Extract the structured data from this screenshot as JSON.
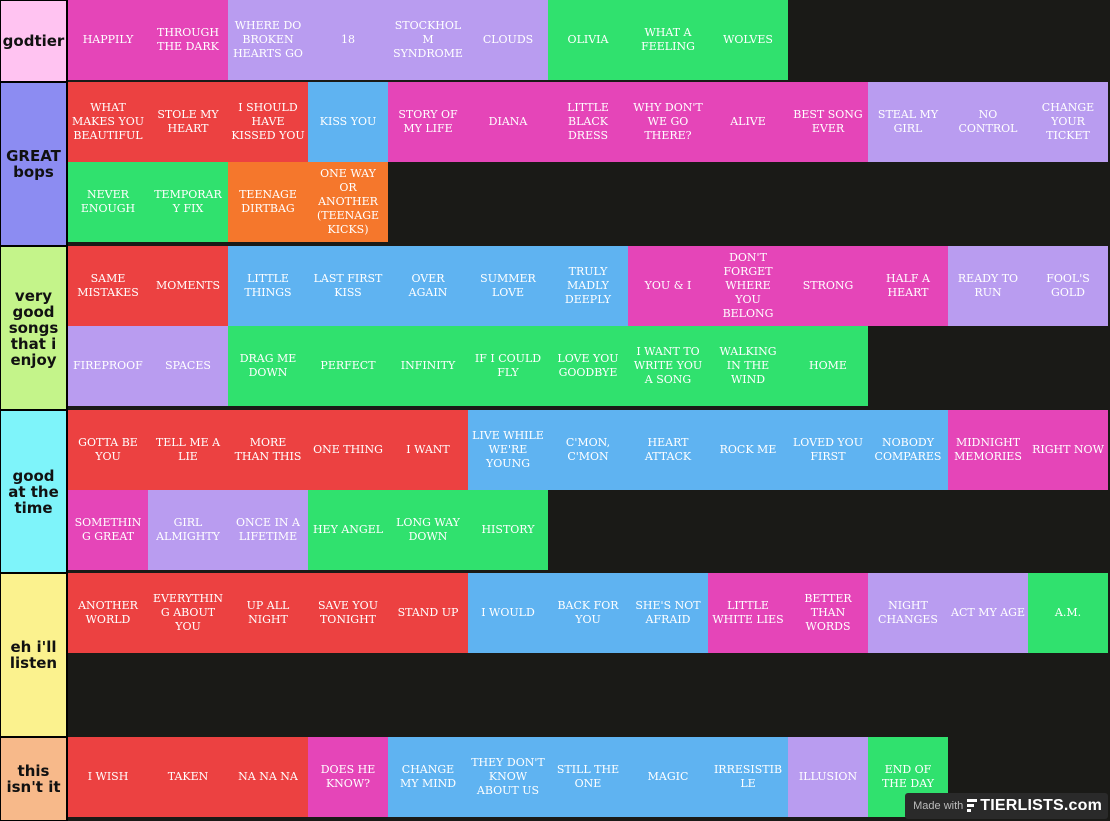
{
  "tiers": [
    {
      "label": "godtier",
      "color": "#ffc3f1",
      "items": [
        {
          "title": "HAPPILY",
          "color": "pink"
        },
        {
          "title": "THROUGH THE DARK",
          "color": "pink"
        },
        {
          "title": "WHERE DO BROKEN HEARTS GO",
          "color": "purple"
        },
        {
          "title": "18",
          "color": "purple"
        },
        {
          "title": "STOCKHOLM SYNDROME",
          "color": "purple"
        },
        {
          "title": "CLOUDS",
          "color": "purple"
        },
        {
          "title": "OLIVIA",
          "color": "green"
        },
        {
          "title": "WHAT A FEELING",
          "color": "green"
        },
        {
          "title": "WOLVES",
          "color": "green"
        }
      ]
    },
    {
      "label": "GREAT bops",
      "color": "#8c8cf2",
      "items": [
        {
          "title": "WHAT MAKES YOU BEAUTIFUL",
          "color": "red"
        },
        {
          "title": "STOLE MY HEART",
          "color": "red"
        },
        {
          "title": "I SHOULD HAVE KISSED YOU",
          "color": "red"
        },
        {
          "title": "KISS YOU",
          "color": "blue"
        },
        {
          "title": "STORY OF MY LIFE",
          "color": "pink"
        },
        {
          "title": "DIANA",
          "color": "pink"
        },
        {
          "title": "LITTLE BLACK DRESS",
          "color": "pink"
        },
        {
          "title": "WHY DON'T WE GO THERE?",
          "color": "pink"
        },
        {
          "title": "ALIVE",
          "color": "pink"
        },
        {
          "title": "BEST SONG EVER",
          "color": "pink"
        },
        {
          "title": "STEAL MY GIRL",
          "color": "purple"
        },
        {
          "title": "NO CONTROL",
          "color": "purple"
        },
        {
          "title": "CHANGE YOUR TICKET",
          "color": "purple"
        },
        {
          "title": "NEVER ENOUGH",
          "color": "green"
        },
        {
          "title": "TEMPORARY FIX",
          "color": "green"
        },
        {
          "title": "TEENAGE DIRTBAG",
          "color": "orange"
        },
        {
          "title": "ONE WAY OR ANOTHER (TEENAGE KICKS)",
          "color": "orange"
        }
      ]
    },
    {
      "label": "very good songs that i enjoy",
      "color": "#c4f48a",
      "items": [
        {
          "title": "SAME MISTAKES",
          "color": "red"
        },
        {
          "title": "MOMENTS",
          "color": "red"
        },
        {
          "title": "LITTLE THINGS",
          "color": "blue"
        },
        {
          "title": "LAST FIRST KISS",
          "color": "blue"
        },
        {
          "title": "OVER AGAIN",
          "color": "blue"
        },
        {
          "title": "SUMMER LOVE",
          "color": "blue"
        },
        {
          "title": "TRULY MADLY DEEPLY",
          "color": "blue"
        },
        {
          "title": "YOU & I",
          "color": "pink"
        },
        {
          "title": "DON'T FORGET WHERE YOU BELONG",
          "color": "pink"
        },
        {
          "title": "STRONG",
          "color": "pink"
        },
        {
          "title": "HALF A HEART",
          "color": "pink"
        },
        {
          "title": "READY TO RUN",
          "color": "purple"
        },
        {
          "title": "FOOL'S GOLD",
          "color": "purple"
        },
        {
          "title": "FIREPROOF",
          "color": "purple"
        },
        {
          "title": "SPACES",
          "color": "purple"
        },
        {
          "title": "DRAG ME DOWN",
          "color": "green"
        },
        {
          "title": "PERFECT",
          "color": "green"
        },
        {
          "title": "INFINITY",
          "color": "green"
        },
        {
          "title": "IF I COULD FLY",
          "color": "green"
        },
        {
          "title": "LOVE YOU GOODBYE",
          "color": "green"
        },
        {
          "title": "I WANT TO WRITE YOU A SONG",
          "color": "green"
        },
        {
          "title": "WALKING IN THE WIND",
          "color": "green"
        },
        {
          "title": "HOME",
          "color": "green"
        }
      ]
    },
    {
      "label": "good at the time",
      "color": "#7ef4fa",
      "items": [
        {
          "title": "GOTTA BE YOU",
          "color": "red"
        },
        {
          "title": "TELL ME A LIE",
          "color": "red"
        },
        {
          "title": "MORE THAN THIS",
          "color": "red"
        },
        {
          "title": "ONE THING",
          "color": "red"
        },
        {
          "title": "I WANT",
          "color": "red"
        },
        {
          "title": "LIVE WHILE WE'RE YOUNG",
          "color": "blue"
        },
        {
          "title": "C'MON, C'MON",
          "color": "blue"
        },
        {
          "title": "HEART ATTACK",
          "color": "blue"
        },
        {
          "title": "ROCK ME",
          "color": "blue"
        },
        {
          "title": "LOVED YOU FIRST",
          "color": "blue"
        },
        {
          "title": "NOBODY COMPARES",
          "color": "blue"
        },
        {
          "title": "MIDNIGHT MEMORIES",
          "color": "pink"
        },
        {
          "title": "RIGHT NOW",
          "color": "pink"
        },
        {
          "title": "SOMETHING GREAT",
          "color": "pink"
        },
        {
          "title": "GIRL ALMIGHTY",
          "color": "purple"
        },
        {
          "title": "ONCE IN A LIFETIME",
          "color": "purple"
        },
        {
          "title": "HEY ANGEL",
          "color": "green"
        },
        {
          "title": "LONG WAY DOWN",
          "color": "green"
        },
        {
          "title": "HISTORY",
          "color": "green"
        }
      ]
    },
    {
      "label": "eh i'll listen",
      "color": "#fbf28e",
      "items": [
        {
          "title": "ANOTHER WORLD",
          "color": "red"
        },
        {
          "title": "EVERYTHING ABOUT YOU",
          "color": "red"
        },
        {
          "title": "UP ALL NIGHT",
          "color": "red"
        },
        {
          "title": "SAVE YOU TONIGHT",
          "color": "red"
        },
        {
          "title": "STAND UP",
          "color": "red"
        },
        {
          "title": "I WOULD",
          "color": "blue"
        },
        {
          "title": "BACK FOR YOU",
          "color": "blue"
        },
        {
          "title": "SHE'S NOT AFRAID",
          "color": "blue"
        },
        {
          "title": "LITTLE WHITE LIES",
          "color": "pink"
        },
        {
          "title": "BETTER THAN WORDS",
          "color": "pink"
        },
        {
          "title": "NIGHT CHANGES",
          "color": "purple"
        },
        {
          "title": "ACT MY AGE",
          "color": "purple"
        },
        {
          "title": "A.M.",
          "color": "green"
        }
      ]
    },
    {
      "label": "this isn't it",
      "color": "#f7b98a",
      "items": [
        {
          "title": "I WISH",
          "color": "red"
        },
        {
          "title": "TAKEN",
          "color": "red"
        },
        {
          "title": "NA NA NA",
          "color": "red"
        },
        {
          "title": "DOES HE KNOW?",
          "color": "pink"
        },
        {
          "title": "CHANGE MY MIND",
          "color": "blue"
        },
        {
          "title": "THEY DON'T KNOW ABOUT US",
          "color": "blue"
        },
        {
          "title": "STILL THE ONE",
          "color": "blue"
        },
        {
          "title": "MAGIC",
          "color": "blue"
        },
        {
          "title": "IRRESISTIBLE",
          "color": "blue"
        },
        {
          "title": "ILLUSION",
          "color": "purple"
        },
        {
          "title": "END OF THE DAY",
          "color": "green"
        }
      ]
    }
  ],
  "watermark": {
    "made_with": "Made with",
    "brand": "TIERLISTS.com",
    "icon": "tierlists-logo-icon"
  }
}
